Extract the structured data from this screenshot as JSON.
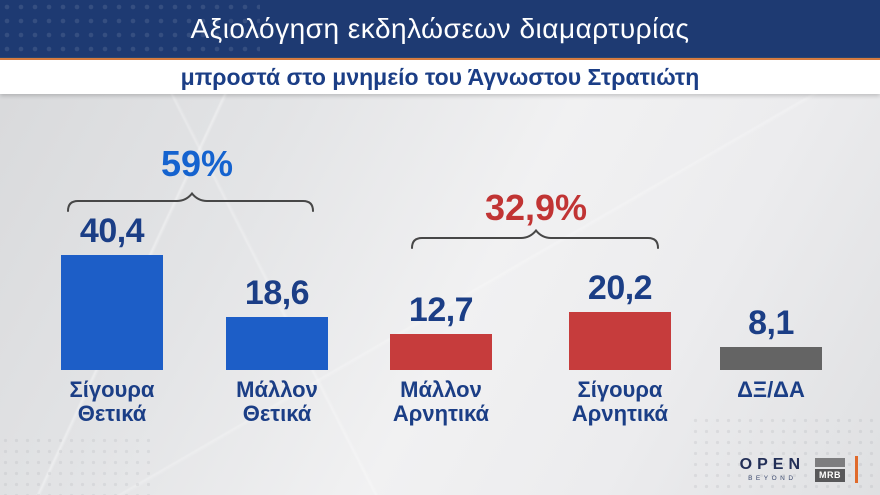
{
  "header": {
    "title": "Αξιολόγηση εκδηλώσεων διαμαρτυρίας",
    "subtitle": "μπροστά στο μνημείο του Άγνωστου Στρατιώτη"
  },
  "chart_data": {
    "type": "bar",
    "title": "Αξιολόγηση εκδηλώσεων διαμαρτυρίας",
    "subtitle": "μπροστά στο μνημείο του Άγνωστου Στρατιώτη",
    "categories": [
      "Σίγουρα Θετικά",
      "Μάλλον Θετικά",
      "Μάλλον Αρνητικά",
      "Σίγουρα Αρνητικά",
      "ΔΞ/ΔΑ"
    ],
    "values": [
      40.4,
      18.6,
      12.7,
      20.2,
      8.1
    ],
    "ylim": [
      0,
      45
    ],
    "grid": false,
    "legend": false,
    "bars": [
      {
        "value_label": "40,4",
        "category_lines": [
          "Σίγουρα",
          "Θετικά"
        ],
        "color": "#1d5ec7"
      },
      {
        "value_label": "18,6",
        "category_lines": [
          "Μάλλον",
          "Θετικά"
        ],
        "color": "#1d5ec7"
      },
      {
        "value_label": "12,7",
        "category_lines": [
          "Μάλλον",
          "Αρνητικά"
        ],
        "color": "#c63c3c"
      },
      {
        "value_label": "20,2",
        "category_lines": [
          "Σίγουρα",
          "Αρνητικά"
        ],
        "color": "#c63c3c"
      },
      {
        "value_label": "8,1",
        "category_lines": [
          "ΔΞ/ΔΑ"
        ],
        "color": "#646464"
      }
    ],
    "groups": [
      {
        "label": "59%",
        "color": "#1563cf",
        "spans": "Σίγουρα Θετικά + Μάλλον Θετικά"
      },
      {
        "label": "32,9%",
        "color": "#c13434",
        "spans": "Μάλλον Αρνητικά + Σίγουρα Αρνητικά"
      }
    ]
  },
  "colors": {
    "header_bg": "#1e3a72",
    "orange_rule": "#d97c41",
    "value_text": "#1b3e86",
    "bracket": "#474747"
  },
  "branding": {
    "open_label": "OPEN",
    "open_sub": "BEYOND",
    "mrb_label": "MRB"
  }
}
